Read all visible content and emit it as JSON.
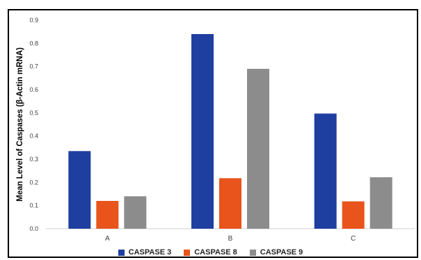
{
  "chart_data": {
    "type": "bar",
    "categories": [
      "A",
      "B",
      "C"
    ],
    "series": [
      {
        "name": "CASPASE 3",
        "color": "#1f3fa0",
        "values": [
          0.335,
          0.84,
          0.497
        ]
      },
      {
        "name": "CASPASE 8",
        "color": "#e8541c",
        "values": [
          0.12,
          0.218,
          0.118
        ]
      },
      {
        "name": "CASPASE 9",
        "color": "#8c8c8c",
        "values": [
          0.14,
          0.69,
          0.222
        ]
      }
    ],
    "title": "",
    "xlabel": "",
    "ylabel": "Mean Level of Caspases (β-Actin mRNA)",
    "ylim": [
      0,
      0.9
    ],
    "yticks": [
      "0.0",
      "0.1",
      "0.2",
      "0.3",
      "0.4",
      "0.5",
      "0.6",
      "0.7",
      "0.8",
      "0.9"
    ],
    "grid": false,
    "legend_position": "bottom"
  }
}
